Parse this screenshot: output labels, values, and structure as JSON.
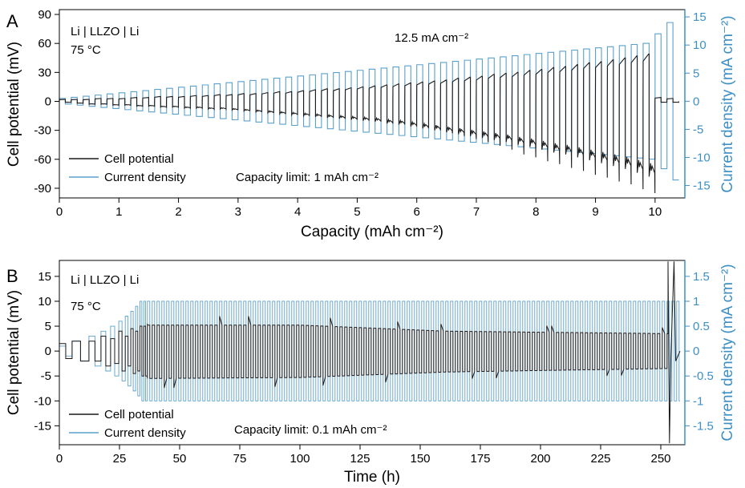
{
  "colors": {
    "potential": "#1a1a1a",
    "current": "#5aa0cc",
    "right_axis": "#3d8fc4",
    "axis": "#000000"
  },
  "chart_data": [
    {
      "panel": "A",
      "type": "line",
      "annotation_lines": [
        "Li | LLZO | Li",
        "75 °C"
      ],
      "inset_note": "12.5 mA cm⁻²",
      "capacity_limit": "Capacity limit: 1 mAh cm⁻²",
      "xlabel": "Capacity (mAh cm⁻²)",
      "ylabel_left": "Cell potential (mV)",
      "ylabel_right": "Current density (mA cm⁻²)",
      "xlim": [
        0,
        10.5
      ],
      "ylim_left": [
        -100,
        95
      ],
      "ylim_right": [
        -17.2,
        16.3
      ],
      "x_ticks": [
        0,
        1,
        2,
        3,
        4,
        5,
        6,
        7,
        8,
        9,
        10
      ],
      "y_left_ticks": [
        90,
        60,
        30,
        0,
        -30,
        -60,
        -90
      ],
      "y_right_ticks": [
        15,
        10,
        5,
        0,
        -5,
        -10,
        -15
      ],
      "legend": {
        "position": "bottom-left",
        "entries": [
          "Cell potential",
          "Current density"
        ]
      },
      "series": [
        {
          "name": "Current density",
          "units": "mA cm-2",
          "cycle_capacity": [
            0.0,
            0.2,
            0.4,
            0.6,
            0.8,
            1.0,
            1.2,
            1.4,
            1.6,
            1.8,
            2.0,
            2.2,
            2.4,
            2.6,
            2.8,
            3.0,
            3.2,
            3.4,
            3.6,
            3.8,
            4.0,
            4.2,
            4.4,
            4.6,
            4.8,
            5.0,
            5.2,
            5.4,
            5.6,
            5.8,
            6.0,
            6.2,
            6.4,
            6.6,
            6.8,
            7.0,
            7.2,
            7.4,
            7.6,
            7.8,
            8.0,
            8.2,
            8.4,
            8.6,
            8.8,
            9.0,
            9.2,
            9.4,
            9.6,
            9.8,
            10.0,
            10.2
          ],
          "amplitude": [
            0.5,
            0.7,
            0.9,
            1.1,
            1.3,
            1.5,
            1.7,
            1.9,
            2.1,
            2.3,
            2.5,
            2.7,
            2.9,
            3.1,
            3.3,
            3.5,
            3.7,
            3.9,
            4.1,
            4.3,
            4.5,
            4.7,
            4.9,
            5.1,
            5.3,
            5.5,
            5.7,
            5.9,
            6.1,
            6.3,
            6.5,
            6.7,
            6.9,
            7.1,
            7.3,
            7.5,
            7.7,
            7.9,
            8.1,
            8.3,
            8.5,
            8.7,
            8.9,
            9.1,
            9.3,
            9.5,
            9.7,
            9.9,
            10.1,
            10.3,
            12.0,
            14.0
          ]
        },
        {
          "name": "Cell potential",
          "units": "mV",
          "cycle_capacity": [
            0.0,
            0.2,
            0.4,
            0.6,
            0.8,
            1.0,
            1.2,
            1.4,
            1.6,
            1.8,
            2.0,
            2.2,
            2.4,
            2.6,
            2.8,
            3.0,
            3.2,
            3.4,
            3.6,
            3.8,
            4.0,
            4.2,
            4.4,
            4.6,
            4.8,
            5.0,
            5.2,
            5.4,
            5.6,
            5.8,
            6.0,
            6.2,
            6.4,
            6.6,
            6.8,
            7.0,
            7.2,
            7.4,
            7.6,
            7.8,
            8.0,
            8.2,
            8.4,
            8.6,
            8.8,
            9.0,
            9.2,
            9.4,
            9.6,
            9.8,
            10.0,
            10.2
          ],
          "positive_plateau": [
            2,
            2,
            2,
            3,
            3,
            3,
            4,
            4,
            5,
            5,
            5,
            6,
            6,
            7,
            7,
            8,
            8,
            9,
            10,
            10,
            11,
            12,
            13,
            13,
            14,
            15,
            16,
            17,
            18,
            19,
            20,
            21,
            22,
            24,
            25,
            26,
            28,
            29,
            30,
            32,
            33,
            35,
            36,
            38,
            40,
            41,
            43,
            45,
            47,
            49,
            4,
            3
          ],
          "negative_plateau": [
            -1,
            -2,
            -3,
            -3,
            -4,
            -4,
            -5,
            -5,
            -6,
            -6,
            -7,
            -7,
            -8,
            -8,
            -9,
            -10,
            -11,
            -12,
            -13,
            -14,
            -15,
            -16,
            -17,
            -18,
            -19,
            -20,
            -21,
            -23,
            -24,
            -26,
            -28,
            -30,
            -32,
            -34,
            -36,
            -38,
            -40,
            -42,
            -45,
            -47,
            -50,
            -53,
            -55,
            -58,
            -61,
            -64,
            -67,
            -70,
            -74,
            -78,
            -1,
            -1
          ],
          "negative_peak": [
            -1,
            -2,
            -3,
            -3,
            -4,
            -4,
            -5,
            -5,
            -6,
            -6,
            -7,
            -7,
            -8,
            -8,
            -9,
            -10,
            -11,
            -12,
            -13,
            -14,
            -15,
            -16,
            -17,
            -18,
            -19,
            -20,
            -21,
            -23,
            -24,
            -26,
            -28,
            -30,
            -33,
            -36,
            -39,
            -42,
            -46,
            -50,
            -55,
            -58,
            -62,
            -65,
            -69,
            -72,
            -76,
            -79,
            -83,
            -86,
            -91,
            -95,
            -1,
            -1
          ]
        }
      ]
    },
    {
      "panel": "B",
      "type": "line",
      "annotation_lines": [
        "Li | LLZO | Li",
        "75 °C"
      ],
      "capacity_limit": "Capacity limit: 0.1 mAh cm⁻²",
      "xlabel": "Time (h)",
      "ylabel_left": "Cell potential (mV)",
      "ylabel_right": "Current density (mA cm⁻²)",
      "xlim": [
        0,
        260
      ],
      "ylim_left": [
        -18.8,
        18.2
      ],
      "ylim_right": [
        -1.88,
        1.82
      ],
      "x_ticks": [
        0,
        25,
        50,
        75,
        100,
        125,
        150,
        175,
        200,
        225,
        250
      ],
      "y_left_ticks": [
        15,
        10,
        5,
        0,
        -5,
        -10,
        -15
      ],
      "y_right_ticks": [
        1.5,
        1,
        0.5,
        0,
        -0.5,
        -1,
        -1.5
      ],
      "legend": {
        "position": "bottom-left",
        "entries": [
          "Cell potential",
          "Current density"
        ]
      },
      "series": [
        {
          "name": "Current density",
          "units": "mA cm-2",
          "ramp_steps_start_h": [
            0,
            5.3,
            12.3,
            17.3,
            21.3,
            24.7,
            27.4,
            29.7,
            31.7,
            33.5,
            35.1,
            36.6
          ],
          "ramp_amplitude": [
            0.1,
            0.2,
            0.3,
            0.4,
            0.5,
            0.6,
            0.7,
            0.8,
            0.9,
            1.0,
            1.0,
            1.0
          ],
          "steady_amplitude": 1.0,
          "steady_half_period_h": 1.0,
          "steady_range_h": [
            36.6,
            258
          ]
        },
        {
          "name": "Cell potential",
          "units": "mV",
          "ramp_plateau": [
            1.5,
            -2,
            2,
            -3,
            2.5,
            -4,
            3,
            -4.5,
            4,
            -5,
            5,
            -5.5
          ],
          "steady_plateau_points": [
            {
              "x": 36,
              "up": 5.2,
              "down": -5.5
            },
            {
              "x": 100,
              "up": 5.2,
              "down": -5.3
            },
            {
              "x": 160,
              "up": 4.0,
              "down": -4.2
            },
            {
              "x": 252,
              "up": 3.5,
              "down": -3.5
            }
          ],
          "short_circuit_h": 253,
          "short_circuit_range": [
            -18.5,
            18
          ]
        }
      ]
    }
  ]
}
